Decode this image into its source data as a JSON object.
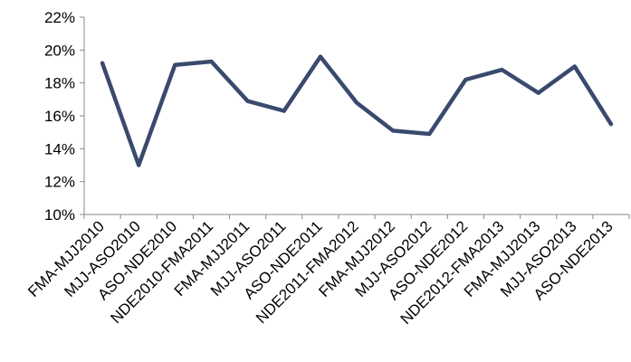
{
  "chart_data": {
    "type": "line",
    "categories": [
      "FMA-MJJ2010",
      "MJJ-ASO2010",
      "ASO-NDE2010",
      "NDE2010-FMA2011",
      "FMA-MJJ2011",
      "MJJ-ASO2011",
      "ASO-NDE2011",
      "NDE2011-FMA2012",
      "FMA-MJJ2012",
      "MJJ-ASO2012",
      "ASO-NDE2012",
      "NDE2012-FMA2013",
      "FMA-MJJ2013",
      "MJJ-ASO2013",
      "ASO-NDE2013"
    ],
    "series": [
      {
        "values": [
          19.2,
          13.0,
          19.1,
          19.3,
          16.9,
          16.3,
          19.6,
          16.8,
          15.1,
          14.9,
          18.2,
          18.8,
          17.4,
          19.0,
          15.5
        ],
        "color": "#3a4a6e"
      }
    ],
    "yticks": [
      "10%",
      "12%",
      "14%",
      "16%",
      "18%",
      "20%",
      "22%"
    ],
    "ylim": [
      10,
      22
    ],
    "title": "",
    "xlabel": "",
    "ylabel": "",
    "grid": false,
    "legend": "none"
  }
}
